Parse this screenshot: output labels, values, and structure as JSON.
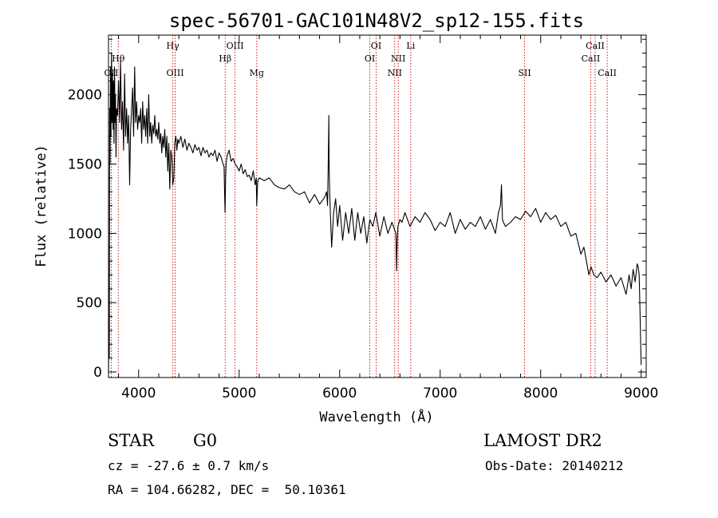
{
  "chart_data": {
    "type": "line",
    "title": "spec-56701-GAC101N48V2_sp12-155.fits",
    "xlabel": "Wavelength (Å)",
    "ylabel": "Flux (relative)",
    "xlim": [
      3700,
      9050
    ],
    "ylim": [
      -40,
      2430
    ],
    "x_ticks": [
      4000,
      5000,
      6000,
      7000,
      8000,
      9000
    ],
    "y_ticks": [
      0,
      500,
      1000,
      1500,
      2000
    ],
    "series": [
      {
        "x": [
          3700,
          3705,
          3708,
          3712,
          3716,
          3720,
          3725,
          3730,
          3735,
          3740,
          3745,
          3750,
          3755,
          3760,
          3765,
          3770,
          3775,
          3780,
          3790,
          3800,
          3810,
          3820,
          3830,
          3840,
          3850,
          3860,
          3870,
          3880,
          3890,
          3900,
          3910,
          3920,
          3930,
          3940,
          3950,
          3960,
          3970,
          3980,
          3990,
          4000,
          4010,
          4020,
          4030,
          4040,
          4050,
          4060,
          4070,
          4080,
          4090,
          4100,
          4110,
          4120,
          4130,
          4140,
          4150,
          4160,
          4170,
          4180,
          4190,
          4200,
          4210,
          4220,
          4230,
          4240,
          4250,
          4260,
          4270,
          4280,
          4290,
          4300,
          4310,
          4320,
          4330,
          4340,
          4350,
          4360,
          4370,
          4380,
          4390,
          4400,
          4420,
          4440,
          4460,
          4480,
          4500,
          4520,
          4540,
          4560,
          4580,
          4600,
          4620,
          4640,
          4660,
          4680,
          4700,
          4720,
          4740,
          4760,
          4780,
          4800,
          4820,
          4840,
          4850,
          4855,
          4860,
          4862,
          4865,
          4870,
          4880,
          4900,
          4920,
          4940,
          4960,
          4980,
          5000,
          5020,
          5040,
          5060,
          5080,
          5100,
          5120,
          5140,
          5160,
          5170,
          5175,
          5180,
          5185,
          5200,
          5250,
          5300,
          5350,
          5400,
          5450,
          5500,
          5550,
          5600,
          5650,
          5700,
          5750,
          5800,
          5850,
          5870,
          5880,
          5885,
          5890,
          5892,
          5895,
          5900,
          5910,
          5920,
          5940,
          5960,
          5980,
          6000,
          6030,
          6060,
          6090,
          6120,
          6150,
          6180,
          6210,
          6240,
          6270,
          6300,
          6330,
          6360,
          6400,
          6440,
          6480,
          6520,
          6550,
          6560,
          6563,
          6566,
          6570,
          6580,
          6600,
          6620,
          6650,
          6700,
          6750,
          6800,
          6850,
          6900,
          6950,
          7000,
          7050,
          7100,
          7150,
          7200,
          7250,
          7300,
          7350,
          7400,
          7450,
          7500,
          7550,
          7580,
          7600,
          7610,
          7620,
          7630,
          7650,
          7700,
          7750,
          7800,
          7850,
          7900,
          7950,
          8000,
          8050,
          8100,
          8150,
          8200,
          8250,
          8300,
          8350,
          8400,
          8430,
          8460,
          8480,
          8500,
          8530,
          8560,
          8600,
          8650,
          8700,
          8750,
          8800,
          8850,
          8880,
          8900,
          8920,
          8940,
          8960,
          8970,
          8980,
          8990,
          8995,
          9000
        ],
        "y": [
          0,
          420,
          100,
          1900,
          1500,
          2200,
          1700,
          2300,
          1800,
          2150,
          1750,
          2100,
          1650,
          2200,
          1800,
          2000,
          1550,
          1900,
          1850,
          2100,
          1800,
          2250,
          1750,
          1950,
          1600,
          2150,
          1700,
          1900,
          1650,
          1850,
          1350,
          1750,
          1900,
          2050,
          1700,
          2200,
          1800,
          1950,
          1750,
          1850,
          1800,
          1900,
          1650,
          1950,
          1750,
          1850,
          1700,
          1900,
          1650,
          2000,
          1700,
          1800,
          1650,
          1780,
          1720,
          1850,
          1700,
          1750,
          1680,
          1800,
          1650,
          1720,
          1580,
          1700,
          1620,
          1750,
          1550,
          1700,
          1450,
          1650,
          1320,
          1600,
          1550,
          1350,
          1400,
          1650,
          1700,
          1600,
          1680,
          1650,
          1700,
          1620,
          1680,
          1600,
          1650,
          1620,
          1580,
          1640,
          1600,
          1620,
          1560,
          1620,
          1580,
          1600,
          1550,
          1580,
          1560,
          1600,
          1520,
          1580,
          1550,
          1500,
          1480,
          1300,
          1150,
          1250,
          1400,
          1500,
          1560,
          1600,
          1520,
          1540,
          1500,
          1480,
          1450,
          1500,
          1430,
          1460,
          1410,
          1420,
          1380,
          1450,
          1350,
          1400,
          1200,
          1300,
          1380,
          1400,
          1380,
          1400,
          1350,
          1330,
          1320,
          1350,
          1300,
          1280,
          1300,
          1220,
          1280,
          1210,
          1260,
          1300,
          1200,
          1450,
          1700,
          1850,
          1500,
          1300,
          1100,
          900,
          1150,
          1250,
          1050,
          1200,
          950,
          1150,
          1000,
          1180,
          950,
          1150,
          1000,
          1120,
          930,
          1100,
          1050,
          1150,
          980,
          1120,
          1000,
          1080,
          1020,
          1000,
          900,
          730,
          880,
          1050,
          1100,
          1080,
          1150,
          1050,
          1120,
          1080,
          1150,
          1100,
          1020,
          1080,
          1050,
          1150,
          1000,
          1100,
          1030,
          1080,
          1050,
          1120,
          1030,
          1100,
          1000,
          1150,
          1200,
          1350,
          1100,
          1080,
          1050,
          1080,
          1120,
          1100,
          1160,
          1120,
          1180,
          1080,
          1150,
          1100,
          1130,
          1050,
          1080,
          980,
          1000,
          850,
          900,
          780,
          700,
          760,
          700,
          680,
          720,
          650,
          700,
          620,
          680,
          560,
          700,
          600,
          740,
          650,
          780,
          760,
          700,
          400,
          200,
          50
        ]
      }
    ],
    "spectral_lines": [
      {
        "label": "OII",
        "x": 3727,
        "row": 3
      },
      {
        "label": "Hθ",
        "x": 3797,
        "row": 2
      },
      {
        "label": "Hγ",
        "x": 4340,
        "row": 1
      },
      {
        "label": "OIII",
        "x": 4363,
        "row": 3
      },
      {
        "label": "Hβ",
        "x": 4861,
        "row": 2
      },
      {
        "label": "OIII",
        "x": 4959,
        "row": 1
      },
      {
        "label": "Mg",
        "x": 5175,
        "row": 3
      },
      {
        "label": "OI",
        "x": 6300,
        "row": 2
      },
      {
        "label": "OI",
        "x": 6363,
        "row": 1
      },
      {
        "label": "NII",
        "x": 6548,
        "row": 3
      },
      {
        "label": "NII",
        "x": 6583,
        "row": 2
      },
      {
        "label": "Li",
        "x": 6707,
        "row": 1
      },
      {
        "label": "SII",
        "x": 7840,
        "row": 3
      },
      {
        "label": "CaII",
        "x": 8498,
        "row": 2
      },
      {
        "label": "CaII",
        "x": 8542,
        "row": 1
      },
      {
        "label": "CaII",
        "x": 8662,
        "row": 3
      }
    ],
    "colors": {
      "spectrum": "#000000",
      "line_markers": "#cc0000",
      "axes": "#000000"
    }
  },
  "info": {
    "class_label": "STAR",
    "subclass": "G0",
    "survey": "LAMOST DR2",
    "cz": "cz = -27.6 ± 0.7 km/s",
    "obs_date": "Obs-Date: 20140212",
    "radec": "RA = 104.66282, DEC =  50.10361"
  }
}
